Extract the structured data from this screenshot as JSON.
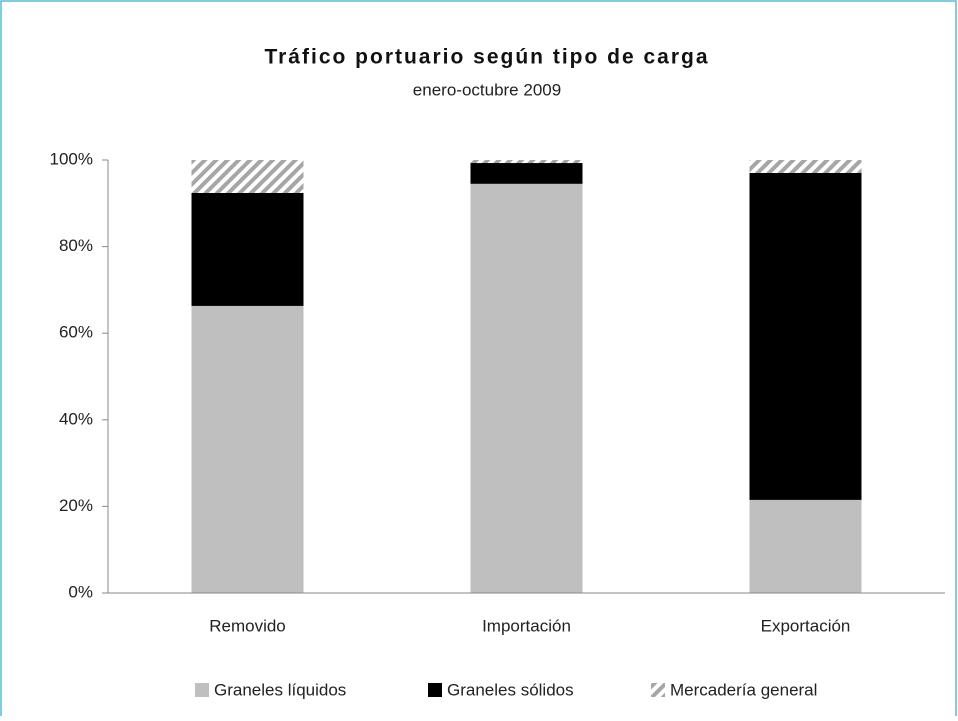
{
  "chart_data": {
    "type": "stacked-bar",
    "title": "Tráfico portuario según tipo de carga",
    "subtitle": "enero-octubre 2009",
    "categories": [
      "Removido",
      "Importación",
      "Exportación"
    ],
    "series": [
      {
        "name": "Graneles líquidos",
        "color": "#bfbfbf",
        "values": [
          66.3,
          94.5,
          21.5
        ]
      },
      {
        "name": "Graneles sólidos",
        "color": "#000000",
        "values": [
          26.1,
          4.8,
          75.5
        ]
      },
      {
        "name": "Mercadería general",
        "color": "#a6a6a6",
        "pattern": "hatch",
        "values": [
          7.6,
          0.7,
          3.0
        ]
      }
    ],
    "ylim": [
      0,
      100
    ],
    "yticks": [
      {
        "value": 0,
        "label": "0%"
      },
      {
        "value": 20,
        "label": "20%"
      },
      {
        "value": 40,
        "label": "40%"
      },
      {
        "value": 60,
        "label": "60%"
      },
      {
        "value": 80,
        "label": "80%"
      },
      {
        "value": 100,
        "label": "100%"
      }
    ],
    "legend": "bottom"
  }
}
